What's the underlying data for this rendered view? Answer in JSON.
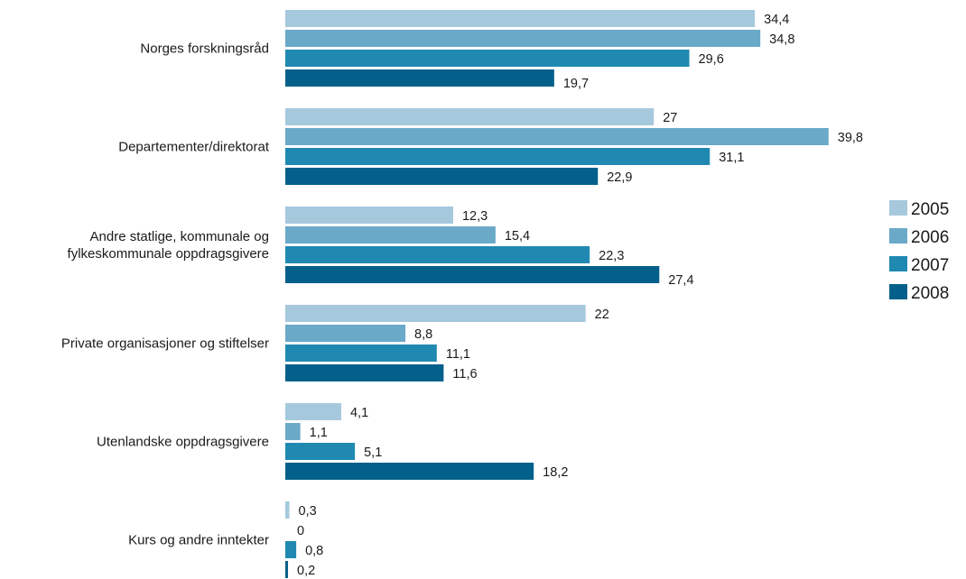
{
  "chart_data": {
    "type": "bar",
    "orientation": "horizontal",
    "categories": [
      [
        "Norges forskningsråd"
      ],
      [
        "Departementer/direktorat"
      ],
      [
        "Andre statlige, kommunale og",
        "fylkeskommunale oppdragsgivere"
      ],
      [
        "Private organisasjoner og stiftelser"
      ],
      [
        "Utenlandske oppdragsgivere"
      ],
      [
        "Kurs og andre inntekter"
      ]
    ],
    "series": [
      {
        "name": "2005",
        "color": "#a6c8dc",
        "values": [
          34.4,
          27,
          12.3,
          22,
          4.1,
          0.3
        ],
        "labels": [
          "34,4",
          "27",
          "12,3",
          "22",
          "4,1",
          "0,3"
        ]
      },
      {
        "name": "2006",
        "color": "#6aa9c8",
        "values": [
          34.8,
          39.8,
          15.4,
          8.8,
          1.1,
          0
        ],
        "labels": [
          "34,8",
          "39,8",
          "15,4",
          "8,8",
          "1,1",
          "0"
        ]
      },
      {
        "name": "2007",
        "color": "#2089b2",
        "values": [
          29.6,
          31.1,
          22.3,
          11.1,
          5.1,
          0.8
        ],
        "labels": [
          "29,6",
          "31,1",
          "22,3",
          "11,1",
          "5,1",
          "0,8"
        ]
      },
      {
        "name": "2008",
        "color": "#03608b",
        "values": [
          19.7,
          22.9,
          27.4,
          11.6,
          18.2,
          0.2
        ],
        "labels": [
          "19,7",
          "22,9",
          "27,4",
          "11,6",
          "18,2",
          "0,2"
        ]
      }
    ],
    "xlim": [
      0,
      40
    ],
    "grid": false,
    "legend_position": "right"
  }
}
